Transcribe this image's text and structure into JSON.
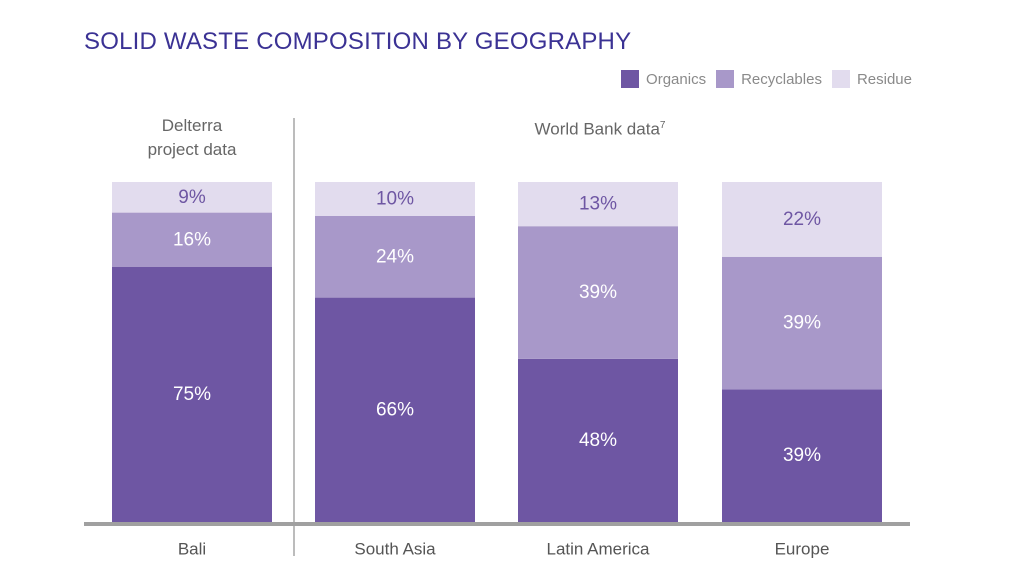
{
  "chart_data": {
    "type": "bar",
    "stacked": true,
    "title": "SOLID WASTE COMPOSITION BY GEOGRAPHY",
    "categories": [
      "Bali",
      "South Asia",
      "Latin America",
      "Europe"
    ],
    "series": [
      {
        "name": "Organics",
        "values": [
          75,
          66,
          48,
          39
        ],
        "labels": [
          "75%",
          "66%",
          "48%",
          "39%"
        ],
        "color": "#6e56a3",
        "label_color": "#ffffff"
      },
      {
        "name": "Recyclables",
        "values": [
          16,
          24,
          39,
          39
        ],
        "labels": [
          "16%",
          "24%",
          "39%",
          "39%"
        ],
        "color": "#a898c9",
        "label_color": "#ffffff"
      },
      {
        "name": "Residue",
        "values": [
          9,
          10,
          13,
          22
        ],
        "labels": [
          "9%",
          "10%",
          "13%",
          "22%"
        ],
        "color": "#e2dcee",
        "label_color": "#6e56a3"
      }
    ],
    "ylim": [
      0,
      100
    ],
    "legend_position": "top-right",
    "grid": false,
    "groups": [
      {
        "label_line1": "Delterra",
        "label_line2": "project data",
        "categories": [
          "Bali"
        ]
      },
      {
        "label": "World Bank data",
        "superscript": "7",
        "categories": [
          "South Asia",
          "Latin America",
          "Europe"
        ]
      }
    ]
  }
}
